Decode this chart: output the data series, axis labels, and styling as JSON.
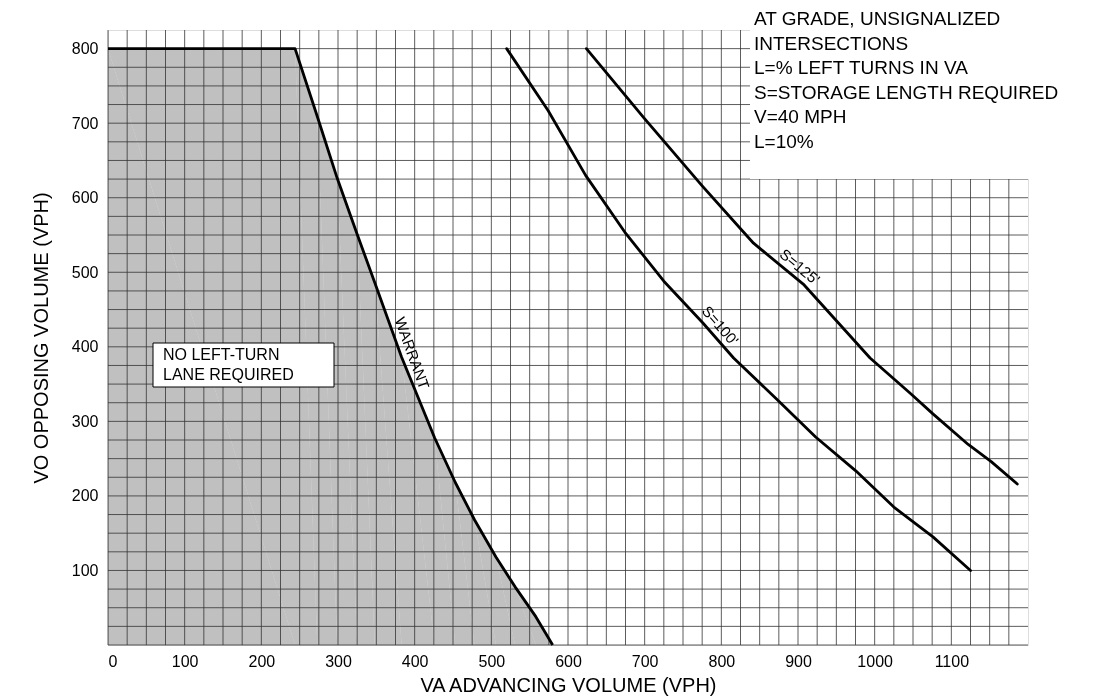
{
  "chart_data": {
    "type": "line",
    "xlabel": "VA ADVANCING VOLUME (VPH)",
    "ylabel": "VO OPPOSING VOLUME (VPH)",
    "xlim": [
      0,
      1200
    ],
    "ylim": [
      0,
      825
    ],
    "xticks": [
      0,
      {
        "value": 25,
        "label": null
      },
      {
        "value": 50,
        "label": null
      },
      {
        "value": 75,
        "label": null
      },
      100,
      {
        "value": 125,
        "label": null
      },
      {
        "value": 150,
        "label": null
      },
      {
        "value": 175,
        "label": null
      },
      200,
      {
        "value": 225,
        "label": null
      },
      {
        "value": 250,
        "label": null
      },
      {
        "value": 275,
        "label": null
      },
      300,
      {
        "value": 325,
        "label": null
      },
      {
        "value": 350,
        "label": null
      },
      {
        "value": 375,
        "label": null
      },
      400,
      {
        "value": 425,
        "label": null
      },
      {
        "value": 450,
        "label": null
      },
      {
        "value": 475,
        "label": null
      },
      500,
      {
        "value": 525,
        "label": null
      },
      {
        "value": 550,
        "label": null
      },
      {
        "value": 575,
        "label": null
      },
      600,
      {
        "value": 625,
        "label": null
      },
      {
        "value": 650,
        "label": null
      },
      {
        "value": 675,
        "label": null
      },
      700,
      {
        "value": 725,
        "label": null
      },
      {
        "value": 750,
        "label": null
      },
      {
        "value": 775,
        "label": null
      },
      800,
      {
        "value": 825,
        "label": null
      },
      {
        "value": 850,
        "label": null
      },
      {
        "value": 875,
        "label": null
      },
      900,
      {
        "value": 925,
        "label": null
      },
      {
        "value": 950,
        "label": null
      },
      {
        "value": 975,
        "label": null
      },
      1000,
      {
        "value": 1025,
        "label": null
      },
      {
        "value": 1050,
        "label": null
      },
      {
        "value": 1075,
        "label": null
      },
      1100,
      {
        "value": 1125,
        "label": null
      },
      {
        "value": 1150,
        "label": null
      },
      {
        "value": 1175,
        "label": null
      }
    ],
    "yticks": [
      {
        "value": 0,
        "label": null
      },
      {
        "value": 25,
        "label": null
      },
      {
        "value": 50,
        "label": null
      },
      {
        "value": 75,
        "label": null
      },
      100,
      {
        "value": 125,
        "label": null
      },
      {
        "value": 150,
        "label": null
      },
      {
        "value": 175,
        "label": null
      },
      200,
      {
        "value": 225,
        "label": null
      },
      {
        "value": 250,
        "label": null
      },
      {
        "value": 275,
        "label": null
      },
      300,
      {
        "value": 325,
        "label": null
      },
      {
        "value": 350,
        "label": null
      },
      {
        "value": 375,
        "label": null
      },
      400,
      {
        "value": 425,
        "label": null
      },
      {
        "value": 450,
        "label": null
      },
      {
        "value": 475,
        "label": null
      },
      500,
      {
        "value": 525,
        "label": null
      },
      {
        "value": 550,
        "label": null
      },
      {
        "value": 575,
        "label": null
      },
      600,
      {
        "value": 625,
        "label": null
      },
      {
        "value": 650,
        "label": null
      },
      {
        "value": 675,
        "label": null
      },
      700,
      {
        "value": 725,
        "label": null
      },
      {
        "value": 750,
        "label": null
      },
      {
        "value": 775,
        "label": null
      },
      800
    ],
    "grid": true,
    "series": [
      {
        "name": "S=100'",
        "color": "#000000",
        "x": [
          520,
          574,
          623,
          674,
          725,
          776,
          816,
          872,
          923,
          975,
          1025,
          1076,
          1125
        ],
        "values": [
          800,
          717,
          630,
          554,
          488,
          432,
          385,
          330,
          279,
          234,
          185,
          145,
          100
        ]
      },
      {
        "name": "S=125'",
        "color": "#000000",
        "x": [
          624,
          699,
          775,
          842,
          908,
          994,
          1046,
          1076,
          1122,
          1152,
          1186
        ],
        "values": [
          800,
          707,
          616,
          539,
          483,
          385,
          338,
          310,
          269,
          246,
          216
        ]
      },
      {
        "type": "area",
        "name": "WARRANT",
        "color": "#8c8c8c",
        "x": [
          0,
          244,
          273,
          299,
          325,
          348,
          383,
          426,
          453,
          478,
          506,
          531,
          558,
          580
        ],
        "values": [
          800,
          800,
          709,
          626,
          551,
          486,
          386,
          278,
          218,
          168,
          118,
          78,
          38,
          0
        ]
      }
    ],
    "annotations": [
      "NO LEFT-TURN\nLANE REQUIRED",
      "AT GRADE, UNSIGNALIZED\nINTERSECTIONS\nL=% LEFT TURNS IN VA\nS=STORAGE LENGTH REQUIRED\nV=40 MPH\n L=10%"
    ]
  }
}
